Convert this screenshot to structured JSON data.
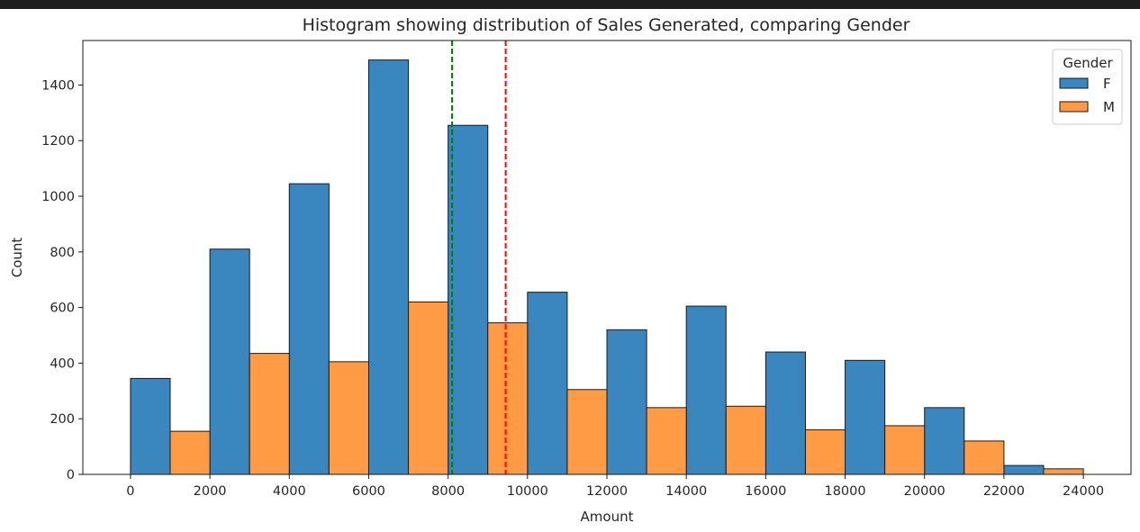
{
  "chart_data": {
    "type": "bar",
    "title": "Histogram showing distribution of Sales Generated, comparing Gender",
    "xlabel": "Amount",
    "ylabel": "Count",
    "xlim": [
      -1200,
      25200
    ],
    "ylim": [
      0,
      1560
    ],
    "xticks": [
      0,
      2000,
      4000,
      6000,
      8000,
      10000,
      12000,
      14000,
      16000,
      18000,
      20000,
      22000,
      24000
    ],
    "yticks": [
      0,
      200,
      400,
      600,
      800,
      1000,
      1200,
      1400
    ],
    "bin_width": 1000,
    "legend": {
      "title": "Gender",
      "position": "top-right"
    },
    "series": [
      {
        "name": "F",
        "color": "#3a86be",
        "bins_start": [
          0,
          2000,
          4000,
          6000,
          8000,
          10000,
          12000,
          14000,
          16000,
          18000,
          20000,
          22000
        ],
        "values": [
          345,
          810,
          1045,
          1490,
          1255,
          655,
          520,
          605,
          440,
          410,
          240,
          32
        ]
      },
      {
        "name": "M",
        "color": "#ff9b45",
        "bins_start": [
          1000,
          3000,
          5000,
          7000,
          9000,
          11000,
          13000,
          15000,
          17000,
          19000,
          21000,
          23000
        ],
        "values": [
          155,
          435,
          405,
          620,
          545,
          305,
          240,
          245,
          160,
          175,
          120,
          20
        ]
      }
    ],
    "reference_lines": [
      {
        "x": 8100,
        "color": "#008000",
        "style": "dashed"
      },
      {
        "x": 9450,
        "color": "#ff0000",
        "style": "dashed"
      }
    ]
  }
}
